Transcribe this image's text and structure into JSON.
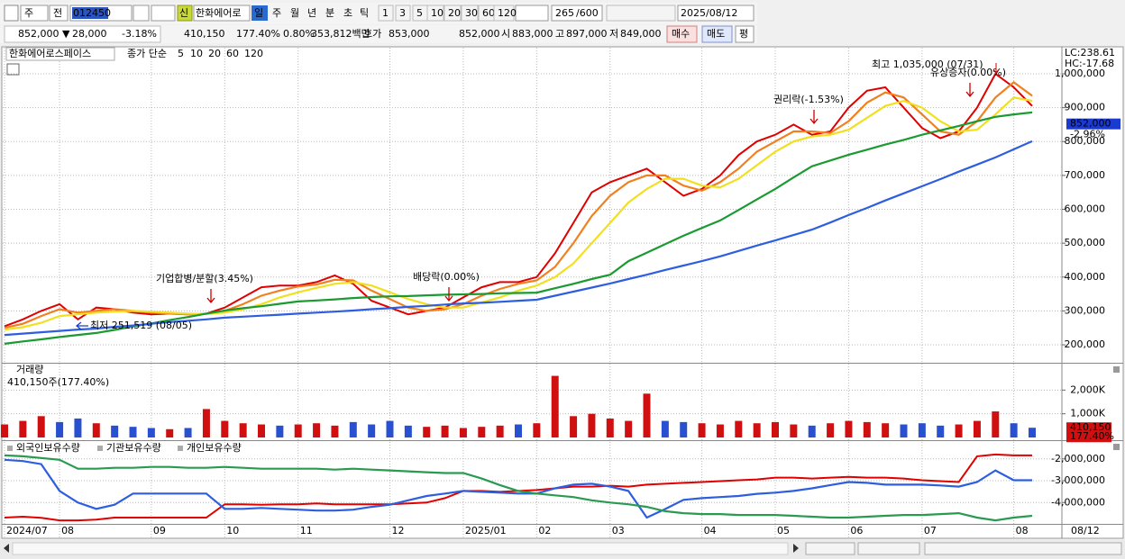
{
  "toolbar": {
    "period": "주",
    "prev": "전",
    "code": "012450",
    "credit": "신",
    "name": "한화에어로",
    "intervals": [
      "일",
      "주",
      "월",
      "년",
      "분",
      "초",
      "틱"
    ],
    "minutes": [
      "1",
      "3",
      "5",
      "10",
      "20",
      "30",
      "60",
      "120"
    ],
    "count": "265",
    "max": "/600",
    "date": "2025/08/12"
  },
  "quote": {
    "price": "852,000 ▼",
    "change": "28,000",
    "change_pct": "-3.18%",
    "volume": "410,150",
    "volume_pct": "177.40%",
    "turnover": "0.80%",
    "amount": "353,812백만",
    "ask_label": "호가",
    "ask": "853,000",
    "bid": "852,000",
    "open_label": "시",
    "open": "883,000",
    "high_label": "고",
    "high": "897,000",
    "low_label": "저",
    "low": "849,000",
    "buy": "매수",
    "sell": "매도",
    "avg": "평"
  },
  "chart_data": [
    {
      "type": "line",
      "title": "한화에어로스페이스",
      "legend_title": "종가 단순",
      "indicator_lc": "LC:238.61",
      "indicator_hc": "HC:-17.68",
      "current": {
        "value": 852000,
        "label": "852,000"
      },
      "current_change": "-2.96%",
      "annotations": [
        "최고 1,035,000 (07/31)",
        "유상증자(0.00%)",
        "권리락(-1.53%)",
        "배당락(0.00%)",
        "기업합병/분할(3.45%)",
        "최저 251,519 (08/05)"
      ],
      "ylim": [
        147000,
        1077000
      ],
      "yticks": [
        {
          "value": 200000,
          "label": "200,000"
        },
        {
          "value": 300000,
          "label": "300,000"
        },
        {
          "value": 400000,
          "label": "400,000"
        },
        {
          "value": 500000,
          "label": "500,000"
        },
        {
          "value": 600000,
          "label": "600,000"
        },
        {
          "value": 700000,
          "label": "700,000"
        },
        {
          "value": 800000,
          "label": "800,000"
        },
        {
          "value": 900000,
          "label": "900,000"
        },
        {
          "value": 1000000,
          "label": "1,000,000"
        }
      ],
      "grid": true,
      "series": [
        {
          "name": "5",
          "color": "#e00000",
          "values": [
            255000,
            275000,
            300000,
            320000,
            275000,
            310000,
            305000,
            295000,
            290000,
            292000,
            290000,
            292000,
            310000,
            340000,
            370000,
            375000,
            375000,
            385000,
            405000,
            380000,
            330000,
            310000,
            290000,
            300000,
            310000,
            340000,
            370000,
            385000,
            385000,
            400000,
            470000,
            560000,
            650000,
            680000,
            700000,
            720000,
            680000,
            640000,
            660000,
            700000,
            760000,
            800000,
            820000,
            850000,
            820000,
            830000,
            900000,
            950000,
            960000,
            900000,
            840000,
            810000,
            830000,
            900000,
            1000000,
            960000,
            905000
          ]
        },
        {
          "name": "10",
          "color": "#f08020",
          "values": [
            250000,
            262000,
            285000,
            305000,
            295000,
            300000,
            305000,
            300000,
            295000,
            292000,
            290000,
            291000,
            300000,
            320000,
            345000,
            360000,
            372000,
            378000,
            392000,
            390000,
            360000,
            335000,
            310000,
            300000,
            305000,
            320000,
            345000,
            365000,
            380000,
            390000,
            430000,
            500000,
            580000,
            640000,
            680000,
            700000,
            700000,
            670000,
            655000,
            680000,
            720000,
            770000,
            800000,
            830000,
            830000,
            825000,
            860000,
            915000,
            945000,
            930000,
            880000,
            830000,
            820000,
            860000,
            930000,
            975000,
            935000
          ]
        },
        {
          "name": "20",
          "color": "#f0e020",
          "values": [
            245000,
            252000,
            265000,
            285000,
            290000,
            295000,
            298000,
            300000,
            298000,
            295000,
            292000,
            291000,
            295000,
            305000,
            320000,
            340000,
            355000,
            368000,
            380000,
            385000,
            375000,
            355000,
            335000,
            320000,
            310000,
            310000,
            325000,
            340000,
            360000,
            375000,
            400000,
            440000,
            500000,
            560000,
            620000,
            660000,
            690000,
            690000,
            670000,
            665000,
            690000,
            730000,
            770000,
            800000,
            815000,
            820000,
            835000,
            870000,
            905000,
            920000,
            900000,
            860000,
            830000,
            835000,
            880000,
            930000,
            920000
          ]
        },
        {
          "name": "60",
          "color": "#1a9a30",
          "values": [
            203000,
            210000,
            216000,
            223000,
            229000,
            235000,
            244000,
            254000,
            263000,
            273000,
            282000,
            292000,
            301000,
            308000,
            314000,
            321000,
            328000,
            331000,
            334000,
            338000,
            341000,
            343000,
            344000,
            346000,
            348000,
            349000,
            350000,
            352000,
            353000,
            354000,
            367000,
            380000,
            394000,
            407000,
            447000,
            472000,
            497000,
            522000,
            545000,
            567000,
            598000,
            629000,
            660000,
            694000,
            727000,
            744000,
            761000,
            776000,
            791000,
            805000,
            820000,
            833000,
            846000,
            860000,
            873000,
            880000,
            886000
          ]
        },
        {
          "name": "120",
          "color": "#2e5ee0",
          "values": [
            229000,
            233000,
            237000,
            241000,
            245000,
            248000,
            253000,
            257000,
            262000,
            267000,
            271000,
            275000,
            280000,
            283000,
            286000,
            289000,
            292000,
            295000,
            298000,
            301000,
            305000,
            308000,
            312000,
            315000,
            319000,
            322000,
            324000,
            327000,
            330000,
            333000,
            345000,
            357000,
            369000,
            381000,
            394000,
            407000,
            421000,
            434000,
            447000,
            461000,
            477000,
            493000,
            508000,
            524000,
            540000,
            561000,
            583000,
            604000,
            626000,
            647000,
            668000,
            689000,
            711000,
            732000,
            753000,
            777000,
            801000
          ]
        }
      ]
    },
    {
      "type": "bar",
      "title": "거래량",
      "subtitle": "410,150주(177.40%)",
      "current": {
        "value": 410150,
        "label": "410,150"
      },
      "current_change": "177.40%",
      "ylim": [
        0,
        3115000
      ],
      "yticks": [
        {
          "value": 1000000,
          "label": "1,000K"
        },
        {
          "value": 2000000,
          "label": "2,000K"
        }
      ],
      "grid": true,
      "values": [
        550000,
        700000,
        900000,
        650000,
        800000,
        600000,
        500000,
        450000,
        400000,
        350000,
        400000,
        1200000,
        700000,
        600000,
        550000,
        500000,
        550000,
        600000,
        500000,
        650000,
        550000,
        700000,
        500000,
        450000,
        500000,
        400000,
        450000,
        500000,
        550000,
        600000,
        2600000,
        900000,
        1000000,
        800000,
        700000,
        1850000,
        700000,
        650000,
        600000,
        550000,
        700000,
        600000,
        650000,
        550000,
        500000,
        600000,
        700000,
        650000,
        600000,
        550000,
        600000,
        500000,
        550000,
        700000,
        1100000,
        600000,
        410150
      ],
      "colors": [
        "#d01010",
        "#d01010",
        "#d01010",
        "#2850d0",
        "#2850d0",
        "#d01010",
        "#2850d0",
        "#2850d0",
        "#2850d0",
        "#d01010",
        "#2850d0",
        "#d01010",
        "#d01010",
        "#d01010",
        "#d01010",
        "#2850d0",
        "#d01010",
        "#d01010",
        "#d01010",
        "#2850d0",
        "#2850d0",
        "#2850d0",
        "#2850d0",
        "#d01010",
        "#d01010",
        "#d01010",
        "#d01010",
        "#d01010",
        "#2850d0",
        "#d01010",
        "#d01010",
        "#d01010",
        "#d01010",
        "#d01010",
        "#d01010",
        "#d01010",
        "#2850d0",
        "#2850d0",
        "#d01010",
        "#d01010",
        "#d01010",
        "#d01010",
        "#d01010",
        "#d01010",
        "#2850d0",
        "#d01010",
        "#d01010",
        "#d01010",
        "#d01010",
        "#2850d0",
        "#2850d0",
        "#2850d0",
        "#d01010",
        "#d01010",
        "#d01010",
        "#2850d0",
        "#2850d0"
      ]
    },
    {
      "type": "line",
      "end_label": "08/12",
      "categories": [
        "2024/07",
        null,
        null,
        "08",
        null,
        null,
        null,
        null,
        "09",
        null,
        null,
        null,
        "10",
        null,
        null,
        null,
        "11",
        null,
        null,
        null,
        null,
        "12",
        null,
        null,
        null,
        "2025/01",
        null,
        null,
        null,
        "02",
        null,
        null,
        null,
        "03",
        null,
        null,
        null,
        null,
        "04",
        null,
        null,
        null,
        "05",
        null,
        null,
        null,
        "06",
        null,
        null,
        null,
        "07",
        null,
        null,
        null,
        null,
        "08",
        null
      ],
      "ylim": [
        -4980000,
        -1225000
      ],
      "yticks": [
        {
          "value": -4000000,
          "label": "-4,000,000"
        },
        {
          "value": -3000000,
          "label": "-3,000,000"
        },
        {
          "value": -2000000,
          "label": "-2,000,000"
        }
      ],
      "grid": true,
      "series": [
        {
          "name": "외국인보유수량",
          "color": "#e00000",
          "values": [
            -4690000,
            -4650000,
            -4700000,
            -4820000,
            -4820000,
            -4780000,
            -4690000,
            -4690000,
            -4690000,
            -4690000,
            -4690000,
            -4690000,
            -4080000,
            -4080000,
            -4100000,
            -4080000,
            -4080000,
            -4040000,
            -4080000,
            -4080000,
            -4080000,
            -4080000,
            -4040000,
            -4000000,
            -3800000,
            -3470000,
            -3470000,
            -3510000,
            -3470000,
            -3430000,
            -3350000,
            -3270000,
            -3270000,
            -3230000,
            -3270000,
            -3180000,
            -3140000,
            -3100000,
            -3060000,
            -3020000,
            -2980000,
            -2940000,
            -2860000,
            -2860000,
            -2900000,
            -2860000,
            -2820000,
            -2860000,
            -2860000,
            -2900000,
            -2980000,
            -3020000,
            -3060000,
            -1880000,
            -1800000,
            -1840000,
            -1840000
          ]
        },
        {
          "name": "기관보유수량",
          "color": "#2e5ee0",
          "values": [
            -2040000,
            -2100000,
            -2240000,
            -3470000,
            -4000000,
            -4290000,
            -4100000,
            -3590000,
            -3590000,
            -3590000,
            -3590000,
            -3590000,
            -4290000,
            -4290000,
            -4250000,
            -4290000,
            -4330000,
            -4370000,
            -4370000,
            -4330000,
            -4200000,
            -4100000,
            -3900000,
            -3700000,
            -3590000,
            -3470000,
            -3510000,
            -3550000,
            -3590000,
            -3590000,
            -3350000,
            -3180000,
            -3140000,
            -3270000,
            -3470000,
            -4690000,
            -4300000,
            -3880000,
            -3800000,
            -3750000,
            -3700000,
            -3600000,
            -3550000,
            -3470000,
            -3350000,
            -3200000,
            -3060000,
            -3100000,
            -3180000,
            -3180000,
            -3180000,
            -3220000,
            -3270000,
            -3060000,
            -2530000,
            -2980000,
            -2980000
          ]
        },
        {
          "name": "개인보유수량",
          "color": "#2a9a50",
          "values": [
            -1840000,
            -1880000,
            -1960000,
            -2040000,
            -2450000,
            -2450000,
            -2410000,
            -2410000,
            -2370000,
            -2370000,
            -2410000,
            -2410000,
            -2370000,
            -2410000,
            -2450000,
            -2450000,
            -2450000,
            -2450000,
            -2490000,
            -2450000,
            -2490000,
            -2530000,
            -2570000,
            -2610000,
            -2650000,
            -2650000,
            -2900000,
            -3200000,
            -3470000,
            -3590000,
            -3670000,
            -3750000,
            -3900000,
            -4000000,
            -4080000,
            -4200000,
            -4400000,
            -4490000,
            -4530000,
            -4530000,
            -4570000,
            -4570000,
            -4570000,
            -4610000,
            -4650000,
            -4690000,
            -4690000,
            -4650000,
            -4610000,
            -4570000,
            -4570000,
            -4530000,
            -4490000,
            -4690000,
            -4820000,
            -4690000,
            -4610000
          ]
        }
      ]
    }
  ]
}
